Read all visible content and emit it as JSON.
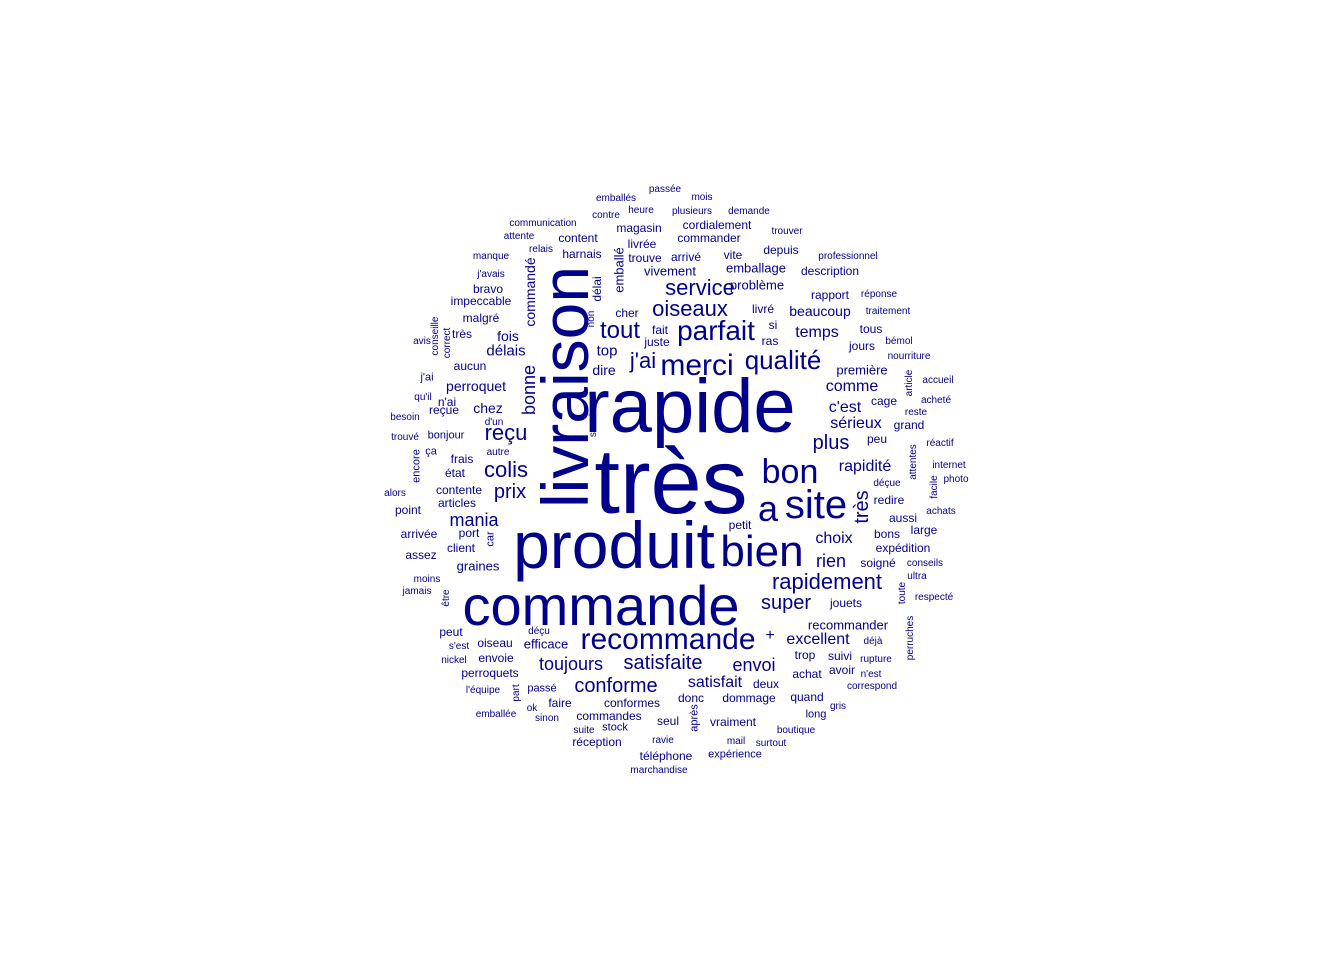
{
  "color": "#00008b",
  "words": [
    "très",
    "rapide",
    "produit",
    "livraison",
    "commande",
    "bien",
    "site",
    "a",
    "bon",
    "recommande",
    "merci",
    "parfait",
    "qualité",
    "j'ai",
    "tout",
    "oiseaux",
    "service",
    "colis",
    "reçu",
    "prix",
    "mania",
    "rapidement",
    "très",
    "super",
    "conforme",
    "satisfaite",
    "toujours",
    "bonne",
    "plus",
    "rien",
    "choix",
    "c'est",
    "comme",
    "sérieux",
    "rapidité",
    "temps",
    "beaucoup",
    "envoi",
    "satisfait",
    "excellent",
    "+",
    "délais",
    "perroquet",
    "chez",
    "top",
    "dire",
    "fois",
    "commandé",
    "emballé",
    "délai",
    "non",
    "emballage",
    "problème",
    "vivement",
    "livré",
    "si",
    "ras",
    "première",
    "rapport",
    "tous",
    "jours",
    "cage",
    "peu",
    "grand",
    "aussi",
    "bons",
    "expédition",
    "soigné",
    "redire",
    "déçue",
    "recommander",
    "jouets",
    "trop",
    "suivi",
    "achat",
    "avoir",
    "déjà",
    "rupture",
    "n'est",
    "correspond",
    "quand",
    "dommage",
    "deux",
    "donc",
    "après",
    "long",
    "gris",
    "boutique",
    "vraiment",
    "seul",
    "conformes",
    "faire",
    "passé",
    "commandes",
    "stock",
    "suite",
    "réception",
    "téléphone",
    "expérience",
    "mail",
    "surtout",
    "ravie",
    "marchandise",
    "sinon",
    "ok",
    "emballée",
    "l'équipe",
    "perroquets",
    "part",
    "envoie",
    "nickel",
    "s'est",
    "peut",
    "oiseau",
    "efficace",
    "déçu",
    "jamais",
    "moins",
    "être",
    "graines",
    "client",
    "car",
    "port",
    "assez",
    "arrivée",
    "point",
    "alors",
    "articles",
    "contente",
    "état",
    "frais",
    "ça",
    "encore",
    "trouvé",
    "bonjour",
    "d'un",
    "autre",
    "reçue",
    "n'ai",
    "qu'il",
    "besoin",
    "j'ai",
    "aucun",
    "correct",
    "conseille",
    "avis",
    "très",
    "malgré",
    "impeccable",
    "bravo",
    "j'avais",
    "manque",
    "attente",
    "communication",
    "contre",
    "emballés",
    "passée",
    "heure",
    "plusieurs",
    "mois",
    "demande",
    "magasin",
    "cordialement",
    "trouver",
    "content",
    "livrée",
    "commander",
    "relais",
    "harnais",
    "trouve",
    "arrivé",
    "vite",
    "depuis",
    "professionnel",
    "description",
    "réponse",
    "traitement",
    "bémol",
    "nourriture",
    "article",
    "accueil",
    "acheté",
    "reste",
    "réactif",
    "attentes",
    "internet",
    "facile",
    "photo",
    "achats",
    "large",
    "conseils",
    "ultra",
    "toute",
    "respecté",
    "perruches",
    "cher",
    "fait",
    "juste",
    "soucis",
    "petit"
  ]
}
